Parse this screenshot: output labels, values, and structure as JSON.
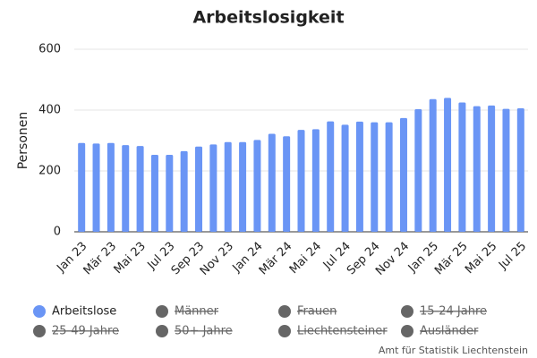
{
  "chart_data": {
    "type": "bar",
    "title": "Arbeitslosigkeit",
    "y_label": "Personen",
    "categories": [
      "Jan 23",
      null,
      "Mär 23",
      null,
      "Mai 23",
      null,
      "Jul 23",
      null,
      "Sep 23",
      null,
      "Nov 23",
      null,
      "Jan 24",
      null,
      "Mär 24",
      null,
      "Mai 24",
      null,
      "Jul 24",
      null,
      "Sep 24",
      null,
      "Nov 24",
      null,
      "Jan 25",
      null,
      "Mär 25",
      null,
      "Mai 25",
      null,
      "Jul 25"
    ],
    "series": [
      {
        "name": "Arbeitslose",
        "color": "#6a95f5",
        "values": [
          292,
          290,
          292,
          285,
          282,
          253,
          253,
          265,
          280,
          287,
          295,
          295,
          302,
          322,
          314,
          335,
          337,
          363,
          352,
          362,
          360,
          360,
          374,
          403,
          436,
          440,
          425,
          413,
          415,
          404,
          406
        ]
      }
    ],
    "hidden_series": [
      "Männer",
      "Frauen",
      "15-24 Jahre",
      "25-49 Jahre",
      "50+ Jahre",
      "Liechtensteiner",
      "Ausländer"
    ],
    "hidden_color": "#666666",
    "ylim": [
      0,
      600
    ],
    "yticks": [
      0,
      200,
      400,
      600
    ],
    "grid": true,
    "source": "Amt für Statistik Liechtenstein"
  }
}
